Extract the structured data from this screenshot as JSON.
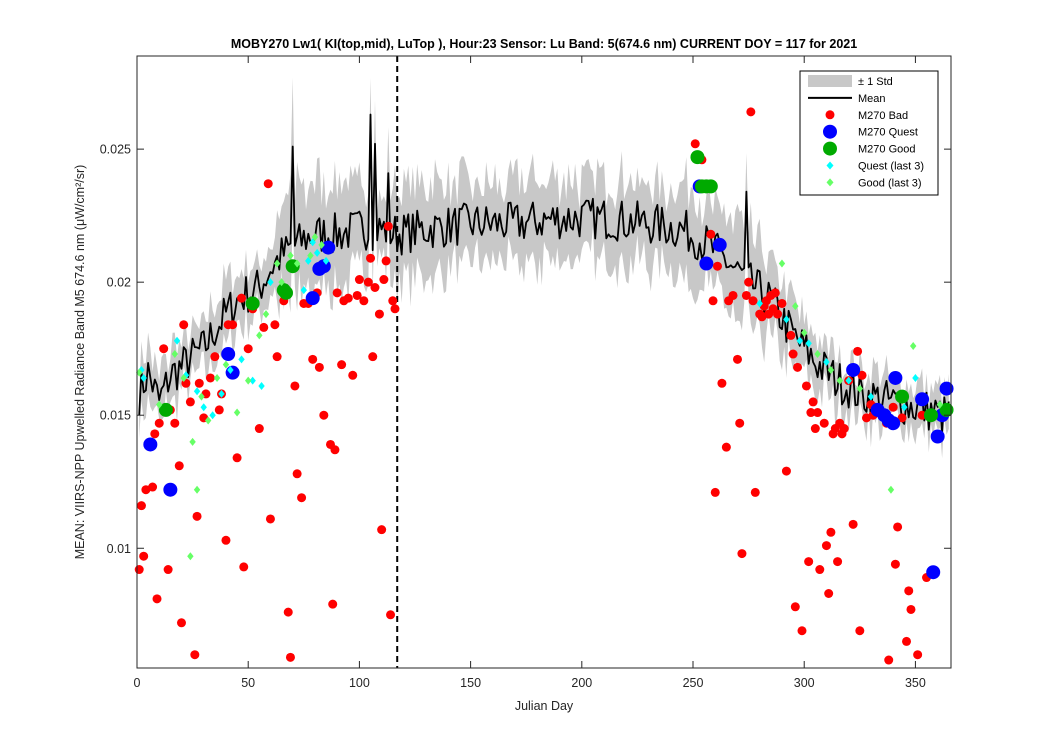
{
  "chart_data": {
    "type": "scatter",
    "title": "MOBY270   Lw1( KI(top,mid), LuTop ),   Hour:23 Sensor: Lu Band: 5(674.6 nm)   CURRENT DOY = 117 for 2021",
    "xlabel": "Julian Day",
    "ylabel": "MEAN: VIIRS-NPP Upwelled Radiance Band M5 674.6 nm (μW/cm²/sr)",
    "xlim": [
      0,
      366
    ],
    "ylim": [
      0.0055,
      0.0285
    ],
    "xticks": [
      0,
      50,
      100,
      150,
      200,
      250,
      300,
      350
    ],
    "xtick_labels": [
      "0",
      "50",
      "100",
      "150",
      "200",
      "250",
      "300",
      "350"
    ],
    "yticks": [
      0.01,
      0.015,
      0.02,
      0.025
    ],
    "ytick_labels": [
      "0.01",
      "0.015",
      "0.02",
      "0.025"
    ],
    "current_doy": 117,
    "legend_position": "top-right",
    "legend": [
      {
        "key": "std",
        "label": "± 1 Std",
        "color": "#c8c8c8",
        "marker": "patch"
      },
      {
        "key": "mean",
        "label": "Mean",
        "color": "#000000",
        "marker": "line"
      },
      {
        "key": "bad",
        "label": "M270 Bad",
        "color": "#ff0000",
        "marker": "dot-small"
      },
      {
        "key": "quest",
        "label": "M270 Quest",
        "color": "#0000ff",
        "marker": "dot-large"
      },
      {
        "key": "good",
        "label": "M270 Good",
        "color": "#00aa00",
        "marker": "dot-large"
      },
      {
        "key": "quest3",
        "label": "Quest (last 3)",
        "color": "#00ffff",
        "marker": "diamond"
      },
      {
        "key": "good3",
        "label": "Good (last 3)",
        "color": "#66ff66",
        "marker": "diamond"
      }
    ],
    "mean_anchors": [
      [
        1,
        0.0158
      ],
      [
        5,
        0.0166
      ],
      [
        10,
        0.0155
      ],
      [
        15,
        0.0165
      ],
      [
        20,
        0.0168
      ],
      [
        25,
        0.0172
      ],
      [
        30,
        0.0175
      ],
      [
        35,
        0.0182
      ],
      [
        40,
        0.0188
      ],
      [
        45,
        0.0193
      ],
      [
        50,
        0.0196
      ],
      [
        55,
        0.0198
      ],
      [
        60,
        0.0205
      ],
      [
        65,
        0.021
      ],
      [
        70,
        0.0213
      ],
      [
        75,
        0.0216
      ],
      [
        80,
        0.0218
      ],
      [
        90,
        0.0218
      ],
      [
        100,
        0.022
      ],
      [
        110,
        0.022
      ],
      [
        117,
        0.0218
      ],
      [
        130,
        0.022
      ],
      [
        150,
        0.0222
      ],
      [
        170,
        0.0222
      ],
      [
        190,
        0.0224
      ],
      [
        210,
        0.0224
      ],
      [
        230,
        0.0222
      ],
      [
        245,
        0.022
      ],
      [
        255,
        0.0215
      ],
      [
        265,
        0.0208
      ],
      [
        275,
        0.02
      ],
      [
        285,
        0.0193
      ],
      [
        295,
        0.018
      ],
      [
        305,
        0.017
      ],
      [
        315,
        0.0163
      ],
      [
        325,
        0.0158
      ],
      [
        335,
        0.0156
      ],
      [
        345,
        0.0154
      ],
      [
        355,
        0.0152
      ],
      [
        362,
        0.015
      ]
    ],
    "mean_spikes": [
      [
        70,
        0.0251
      ],
      [
        105,
        0.0263
      ],
      [
        107,
        0.0252
      ],
      [
        113,
        0.0241
      ],
      [
        274,
        0.0234
      ]
    ],
    "std_width": [
      [
        0,
        0.0009
      ],
      [
        60,
        0.0011
      ],
      [
        70,
        0.0022
      ],
      [
        110,
        0.0013
      ],
      [
        120,
        0.0018
      ],
      [
        150,
        0.0016
      ],
      [
        200,
        0.0014
      ],
      [
        250,
        0.0016
      ],
      [
        275,
        0.0018
      ],
      [
        300,
        0.001
      ],
      [
        366,
        0.0008
      ]
    ],
    "bad": [
      [
        1,
        0.0092
      ],
      [
        2,
        0.0116
      ],
      [
        3,
        0.0097
      ],
      [
        4,
        0.0122
      ],
      [
        7,
        0.0123
      ],
      [
        8,
        0.0143
      ],
      [
        9,
        0.0081
      ],
      [
        10,
        0.0147
      ],
      [
        12,
        0.0175
      ],
      [
        14,
        0.0092
      ],
      [
        15,
        0.0152
      ],
      [
        17,
        0.0147
      ],
      [
        19,
        0.0131
      ],
      [
        20,
        0.0072
      ],
      [
        21,
        0.0184
      ],
      [
        22,
        0.0162
      ],
      [
        24,
        0.0155
      ],
      [
        26,
        0.006
      ],
      [
        27,
        0.0112
      ],
      [
        28,
        0.0162
      ],
      [
        30,
        0.0149
      ],
      [
        31,
        0.0158
      ],
      [
        33,
        0.0164
      ],
      [
        35,
        0.0172
      ],
      [
        37,
        0.0152
      ],
      [
        38,
        0.0158
      ],
      [
        40,
        0.0103
      ],
      [
        41,
        0.0184
      ],
      [
        43,
        0.0184
      ],
      [
        45,
        0.0134
      ],
      [
        47,
        0.0194
      ],
      [
        48,
        0.0093
      ],
      [
        50,
        0.0175
      ],
      [
        52,
        0.019
      ],
      [
        55,
        0.0145
      ],
      [
        57,
        0.0183
      ],
      [
        59,
        0.0237
      ],
      [
        60,
        0.0111
      ],
      [
        62,
        0.0184
      ],
      [
        63,
        0.0172
      ],
      [
        66,
        0.0193
      ],
      [
        68,
        0.0076
      ],
      [
        69,
        0.0059
      ],
      [
        71,
        0.0161
      ],
      [
        72,
        0.0128
      ],
      [
        74,
        0.0119
      ],
      [
        75,
        0.0192
      ],
      [
        77,
        0.0192
      ],
      [
        79,
        0.0171
      ],
      [
        81,
        0.0196
      ],
      [
        82,
        0.0168
      ],
      [
        84,
        0.015
      ],
      [
        87,
        0.0139
      ],
      [
        88,
        0.0079
      ],
      [
        89,
        0.0137
      ],
      [
        90,
        0.0196
      ],
      [
        92,
        0.0169
      ],
      [
        93,
        0.0193
      ],
      [
        95,
        0.0194
      ],
      [
        97,
        0.0165
      ],
      [
        99,
        0.0195
      ],
      [
        100,
        0.0201
      ],
      [
        102,
        0.0193
      ],
      [
        104,
        0.02
      ],
      [
        105,
        0.0209
      ],
      [
        106,
        0.0172
      ],
      [
        107,
        0.0198
      ],
      [
        109,
        0.0188
      ],
      [
        110,
        0.0107
      ],
      [
        111,
        0.0201
      ],
      [
        112,
        0.0208
      ],
      [
        113,
        0.0221
      ],
      [
        114,
        0.0075
      ],
      [
        115,
        0.0193
      ],
      [
        116,
        0.019
      ],
      [
        251,
        0.0252
      ],
      [
        254,
        0.0246
      ],
      [
        258,
        0.0218
      ],
      [
        259,
        0.0193
      ],
      [
        260,
        0.0121
      ],
      [
        261,
        0.0206
      ],
      [
        263,
        0.0162
      ],
      [
        265,
        0.0138
      ],
      [
        266,
        0.0193
      ],
      [
        268,
        0.0195
      ],
      [
        270,
        0.0171
      ],
      [
        271,
        0.0147
      ],
      [
        272,
        0.0098
      ],
      [
        274,
        0.0195
      ],
      [
        275,
        0.02
      ],
      [
        276,
        0.0264
      ],
      [
        277,
        0.0193
      ],
      [
        278,
        0.0121
      ],
      [
        280,
        0.0188
      ],
      [
        281,
        0.0187
      ],
      [
        282,
        0.0191
      ],
      [
        283,
        0.0193
      ],
      [
        284,
        0.0188
      ],
      [
        285,
        0.0195
      ],
      [
        286,
        0.019
      ],
      [
        287,
        0.0196
      ],
      [
        288,
        0.0188
      ],
      [
        290,
        0.0192
      ],
      [
        292,
        0.0129
      ],
      [
        294,
        0.018
      ],
      [
        295,
        0.0173
      ],
      [
        296,
        0.0078
      ],
      [
        297,
        0.0168
      ],
      [
        299,
        0.0069
      ],
      [
        301,
        0.0161
      ],
      [
        302,
        0.0095
      ],
      [
        303,
        0.0151
      ],
      [
        304,
        0.0155
      ],
      [
        305,
        0.0145
      ],
      [
        306,
        0.0151
      ],
      [
        307,
        0.0092
      ],
      [
        309,
        0.0147
      ],
      [
        310,
        0.0101
      ],
      [
        311,
        0.0083
      ],
      [
        312,
        0.0106
      ],
      [
        313,
        0.0143
      ],
      [
        314,
        0.0145
      ],
      [
        315,
        0.0095
      ],
      [
        316,
        0.0147
      ],
      [
        317,
        0.0143
      ],
      [
        318,
        0.0145
      ],
      [
        320,
        0.0163
      ],
      [
        322,
        0.0109
      ],
      [
        324,
        0.0174
      ],
      [
        325,
        0.0069
      ],
      [
        326,
        0.0165
      ],
      [
        328,
        0.0149
      ],
      [
        330,
        0.0154
      ],
      [
        331,
        0.015
      ],
      [
        332,
        0.0153
      ],
      [
        334,
        0.0152
      ],
      [
        336,
        0.015
      ],
      [
        337,
        0.0147
      ],
      [
        338,
        0.0058
      ],
      [
        339,
        0.0148
      ],
      [
        340,
        0.0153
      ],
      [
        341,
        0.0094
      ],
      [
        342,
        0.0108
      ],
      [
        344,
        0.0149
      ],
      [
        346,
        0.0065
      ],
      [
        347,
        0.0084
      ],
      [
        348,
        0.0077
      ],
      [
        351,
        0.006
      ],
      [
        353,
        0.015
      ],
      [
        355,
        0.0089
      ]
    ],
    "quest": [
      [
        6,
        0.0139
      ],
      [
        15,
        0.0122
      ],
      [
        41,
        0.0173
      ],
      [
        43,
        0.0166
      ],
      [
        79,
        0.0194
      ],
      [
        82,
        0.0205
      ],
      [
        84,
        0.0206
      ],
      [
        86,
        0.0213
      ],
      [
        253,
        0.0236
      ],
      [
        256,
        0.0207
      ],
      [
        262,
        0.0214
      ],
      [
        322,
        0.0167
      ],
      [
        333,
        0.0152
      ],
      [
        336,
        0.015
      ],
      [
        338,
        0.0148
      ],
      [
        340,
        0.0147
      ],
      [
        341,
        0.0164
      ],
      [
        353,
        0.0156
      ],
      [
        358,
        0.0091
      ],
      [
        360,
        0.0142
      ],
      [
        362,
        0.015
      ],
      [
        364,
        0.016
      ]
    ],
    "good": [
      [
        13,
        0.0152
      ],
      [
        52,
        0.0192
      ],
      [
        66,
        0.0197
      ],
      [
        67,
        0.0196
      ],
      [
        70,
        0.0206
      ],
      [
        252,
        0.0247
      ],
      [
        254,
        0.0236
      ],
      [
        256,
        0.0236
      ],
      [
        258,
        0.0236
      ],
      [
        344,
        0.0157
      ],
      [
        357,
        0.015
      ],
      [
        364,
        0.0152
      ]
    ],
    "quest3": [
      [
        2,
        0.0167
      ],
      [
        3,
        0.0164
      ],
      [
        18,
        0.0178
      ],
      [
        22,
        0.0165
      ],
      [
        27,
        0.0159
      ],
      [
        30,
        0.0153
      ],
      [
        34,
        0.015
      ],
      [
        38,
        0.0158
      ],
      [
        42,
        0.0167
      ],
      [
        47,
        0.0171
      ],
      [
        52,
        0.0163
      ],
      [
        56,
        0.0161
      ],
      [
        60,
        0.02
      ],
      [
        75,
        0.0197
      ],
      [
        77,
        0.0208
      ],
      [
        79,
        0.0215
      ],
      [
        81,
        0.0211
      ],
      [
        85,
        0.0208
      ],
      [
        280,
        0.0192
      ],
      [
        292,
        0.0186
      ],
      [
        298,
        0.0178
      ],
      [
        302,
        0.0177
      ],
      [
        310,
        0.017
      ],
      [
        320,
        0.0163
      ],
      [
        330,
        0.0157
      ],
      [
        345,
        0.0153
      ],
      [
        350,
        0.0164
      ]
    ],
    "good3": [
      [
        1,
        0.0166
      ],
      [
        10,
        0.0154
      ],
      [
        17,
        0.0173
      ],
      [
        21,
        0.0164
      ],
      [
        24,
        0.0097
      ],
      [
        25,
        0.014
      ],
      [
        27,
        0.0122
      ],
      [
        29,
        0.0157
      ],
      [
        32,
        0.0148
      ],
      [
        36,
        0.0164
      ],
      [
        40,
        0.0169
      ],
      [
        45,
        0.0151
      ],
      [
        50,
        0.0163
      ],
      [
        55,
        0.018
      ],
      [
        58,
        0.0188
      ],
      [
        63,
        0.0207
      ],
      [
        65,
        0.02
      ],
      [
        69,
        0.021
      ],
      [
        72,
        0.0207
      ],
      [
        78,
        0.021
      ],
      [
        80,
        0.0217
      ],
      [
        83,
        0.0214
      ],
      [
        290,
        0.0207
      ],
      [
        296,
        0.0191
      ],
      [
        300,
        0.0181
      ],
      [
        306,
        0.0173
      ],
      [
        312,
        0.0167
      ],
      [
        316,
        0.0163
      ],
      [
        325,
        0.016
      ],
      [
        339,
        0.0122
      ],
      [
        349,
        0.0176
      ],
      [
        361,
        0.0154
      ]
    ]
  }
}
